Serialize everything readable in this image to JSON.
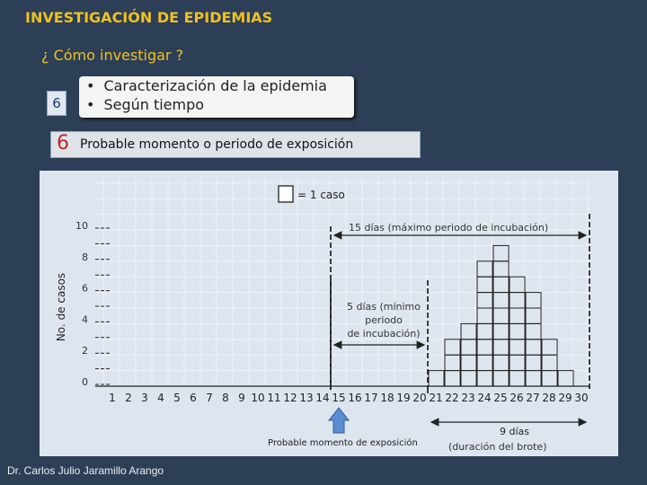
{
  "header": {
    "title": "INVESTIGACIÓN DE EPIDEMIAS",
    "subtitle": "¿ Cómo investigar ?"
  },
  "bullet_box": {
    "badge": "6",
    "items": [
      "Caracterización de la epidemia",
      "Según tiempo"
    ]
  },
  "step_bar": {
    "number": "6",
    "label": "Probable momento o periodo de exposición"
  },
  "chart_data": {
    "type": "bar",
    "ylabel": "No. de casos",
    "xlabel": "",
    "yticks": [
      "0",
      "2",
      "4",
      "6",
      "8",
      "10"
    ],
    "ylim": [
      0,
      10
    ],
    "categories": [
      "1",
      "2",
      "3",
      "4",
      "5",
      "6",
      "7",
      "8",
      "9",
      "10",
      "11",
      "12",
      "13",
      "14",
      "15",
      "16",
      "17",
      "18",
      "19",
      "20",
      "21",
      "22",
      "23",
      "24",
      "25",
      "26",
      "27",
      "28",
      "29",
      "30"
    ],
    "values": [
      0,
      0,
      0,
      0,
      0,
      0,
      0,
      0,
      0,
      0,
      0,
      0,
      0,
      0,
      0,
      0,
      0,
      0,
      0,
      0,
      1,
      3,
      4,
      8,
      9,
      7,
      6,
      3,
      1,
      0
    ],
    "legend": "= 1 caso",
    "grid": true,
    "annotations": {
      "max_incubation": "15 días (máximo periodo de incubación)",
      "min_incubation": "5 días (mínimo periodo de incubación)",
      "outbreak_days": "9 días",
      "outbreak_note": "(duración del brote)",
      "exposure": "Probable momento de exposición"
    }
  },
  "footer": {
    "author": "Dr. Carlos Julio Jaramillo Arango"
  },
  "colors": {
    "background": "#2c3f57",
    "title": "#f0c020",
    "chart_bg": "#dde5ef",
    "arrow": "#5b8ed0",
    "step_number": "#b92c2c"
  }
}
